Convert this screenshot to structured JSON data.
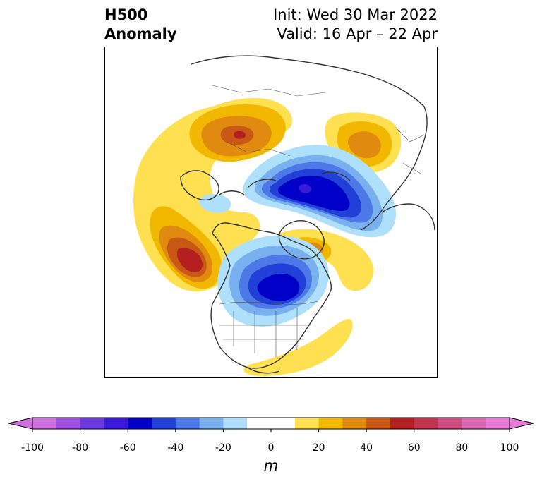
{
  "title": {
    "left_line1": "H500",
    "left_line2": "Anomaly",
    "right_line1": "Init: Wed 30 Mar 2022",
    "right_line2": "Valid: 16 Apr – 22 Apr"
  },
  "colorbar": {
    "units": "m",
    "ticks": [
      "-100",
      "-80",
      "-60",
      "-40",
      "-20",
      "0",
      "20",
      "40",
      "60",
      "80",
      "100"
    ],
    "levels": [
      -100,
      -90,
      -80,
      -70,
      -60,
      -50,
      -40,
      -30,
      -20,
      -10,
      10,
      20,
      30,
      40,
      50,
      60,
      70,
      80,
      90,
      100
    ],
    "colors": [
      "#d070e0",
      "#a050e0",
      "#6a3ae0",
      "#3a1ad8",
      "#0000c8",
      "#2040d8",
      "#4c78e8",
      "#78b0f0",
      "#aee0fc",
      "#ffffff",
      "#ffe050",
      "#f2b800",
      "#e08a10",
      "#c85814",
      "#b42020",
      "#c03450",
      "#cc4e80",
      "#d868b0",
      "#ea7ad8"
    ],
    "min_color": "#d070e0",
    "max_color": "#ea7ad8"
  }
}
